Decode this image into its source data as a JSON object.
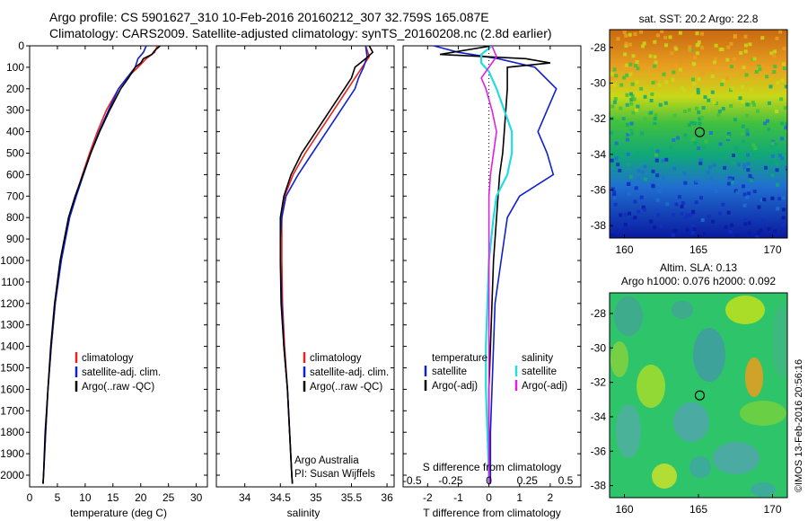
{
  "header": {
    "line1": "Argo profile: CS 5901627_310 10-Feb-2016 20160212_307 32.759S 165.087E",
    "line2": "Climatology: CARS2009. Satellite-adjusted climatology: synTS_20160208.nc (2.8d earlier)"
  },
  "colors": {
    "climatology": "#e8231e",
    "satellite": "#1020d0",
    "argo": "#000000",
    "sal_satellite": "#22dde0",
    "sal_argo": "#e020e0"
  },
  "chart_data": [
    {
      "type": "line",
      "xlabel": "temperature (deg C)",
      "ylabel": "",
      "xlim": [
        0,
        32
      ],
      "ylim": [
        2050,
        0
      ],
      "xticks": [
        "0",
        "5",
        "10",
        "15",
        "20",
        "25",
        "30"
      ],
      "yticks": [
        "0",
        "100",
        "200",
        "300",
        "400",
        "500",
        "600",
        "700",
        "800",
        "900",
        "1000",
        "1100",
        "1200",
        "1300",
        "1400",
        "1500",
        "1600",
        "1700",
        "1800",
        "1900",
        "2000"
      ],
      "legend": [
        "climatology",
        "satellite-adj. clim.",
        "Argo(..raw -QC)"
      ],
      "series": [
        {
          "name": "climatology",
          "y": [
            0,
            30,
            60,
            100,
            150,
            200,
            300,
            400,
            500,
            600,
            700,
            800,
            1000,
            1200,
            1400,
            1600,
            1800,
            2000,
            2040
          ],
          "x": [
            23,
            22.5,
            21,
            19.5,
            17.5,
            16,
            13.8,
            12.2,
            10.8,
            9.5,
            8.3,
            7.1,
            5.6,
            4.6,
            3.9,
            3.3,
            2.9,
            2.5,
            2.4
          ]
        },
        {
          "name": "satellite-adj. clim.",
          "y": [
            0,
            30,
            60,
            100,
            150,
            200,
            300,
            400,
            500,
            600,
            700,
            800,
            1000,
            1200,
            1400,
            1600,
            1800,
            2000,
            2040
          ],
          "x": [
            21,
            20.5,
            19.5,
            19,
            17.5,
            16,
            14.2,
            12.5,
            11,
            9.7,
            8.4,
            7.2,
            5.7,
            4.6,
            3.9,
            3.3,
            2.9,
            2.5,
            2.4
          ]
        },
        {
          "name": "Argo(..raw -QC)",
          "y": [
            0,
            20,
            40,
            60,
            80,
            100,
            150,
            200,
            300,
            400,
            500,
            600,
            700,
            800,
            1000,
            1200,
            1400,
            1600,
            1800,
            2000,
            2040
          ],
          "x": [
            23.5,
            22.6,
            22,
            20.5,
            20,
            19,
            17.8,
            16.4,
            14.4,
            12.6,
            11,
            9.6,
            8.2,
            7,
            5.5,
            4.5,
            3.8,
            3.3,
            2.8,
            2.5,
            2.4
          ]
        }
      ]
    },
    {
      "type": "line",
      "xlabel": "salinity",
      "xlim": [
        33.6,
        36.1
      ],
      "ylim": [
        2050,
        0
      ],
      "xticks": [
        "34",
        "34.5",
        "35",
        "35.5",
        "36"
      ],
      "legend": [
        "climatology",
        "satellite-adj. clim.",
        "Argo(..raw -QC)"
      ],
      "annotation": [
        "Argo Australia",
        "PI: Susan Wijffels"
      ],
      "series": [
        {
          "name": "climatology",
          "y": [
            0,
            50,
            100,
            150,
            200,
            300,
            400,
            500,
            600,
            700,
            800,
            900,
            1000,
            1200,
            1400,
            1600,
            1800,
            2000,
            2040
          ],
          "x": [
            35.7,
            35.75,
            35.65,
            35.55,
            35.45,
            35.25,
            35.05,
            34.85,
            34.68,
            34.56,
            34.52,
            34.52,
            34.52,
            34.53,
            34.56,
            34.6,
            34.63,
            34.66,
            34.67
          ]
        },
        {
          "name": "satellite-adj. clim.",
          "y": [
            0,
            50,
            100,
            150,
            200,
            300,
            400,
            500,
            600,
            700,
            800,
            900,
            1000,
            1200,
            1400,
            1600,
            1800,
            2000,
            2040
          ],
          "x": [
            35.7,
            35.72,
            35.67,
            35.6,
            35.55,
            35.35,
            35.15,
            34.95,
            34.75,
            34.58,
            34.52,
            34.5,
            34.5,
            34.52,
            34.55,
            34.6,
            34.63,
            34.66,
            34.67
          ]
        },
        {
          "name": "Argo(..raw -QC)",
          "y": [
            0,
            30,
            60,
            100,
            150,
            200,
            300,
            400,
            500,
            600,
            700,
            800,
            900,
            1000,
            1200,
            1400,
            1600,
            1800,
            2000,
            2040
          ],
          "x": [
            35.75,
            35.8,
            35.7,
            35.55,
            35.5,
            35.4,
            35.2,
            35.0,
            34.8,
            34.65,
            34.55,
            34.5,
            34.5,
            34.5,
            34.51,
            34.55,
            34.6,
            34.63,
            34.66,
            34.67
          ]
        }
      ]
    },
    {
      "type": "line",
      "xlabel": "T difference from climatology",
      "xlabel_top": "S difference from climatology",
      "xlim": [
        -2.8,
        3.0
      ],
      "ylim": [
        2050,
        0
      ],
      "xticks": [
        "-2",
        "-1",
        "0",
        "1",
        "2"
      ],
      "xticks_top": [
        "-0.5",
        "-0.25",
        "0",
        "0.25",
        "0.5"
      ],
      "legend_temperature": {
        "title": "temperature",
        "items": [
          "satellite",
          "Argo(-adj)"
        ]
      },
      "legend_salinity": {
        "title": "salinity",
        "items": [
          "satellite",
          "Argo(-adj)"
        ]
      },
      "series": [
        {
          "name": "temperature satellite",
          "y": [
            0,
            30,
            60,
            100,
            200,
            300,
            400,
            500,
            600,
            700,
            800,
            1000,
            1200,
            1400,
            1600,
            1800,
            2000,
            2040
          ],
          "x": [
            -1.8,
            -1,
            0.3,
            1.5,
            2.2,
            1.9,
            1.6,
            1.9,
            2.1,
            1.0,
            0.6,
            0.4,
            0.2,
            0.15,
            0.1,
            0.05,
            0.05,
            0.05
          ]
        },
        {
          "name": "temperature Argo(-adj)",
          "y": [
            0,
            40,
            60,
            80,
            100,
            200,
            300,
            400,
            500,
            600,
            700,
            800,
            1000,
            1200,
            1400,
            1600,
            1800,
            2000,
            2040
          ],
          "x": [
            0.1,
            -1.6,
            1.2,
            2.0,
            0.6,
            0.6,
            0.55,
            0.5,
            0.45,
            0.35,
            0.3,
            0.25,
            0.15,
            0.1,
            0.05,
            0.0,
            0.0,
            0.0,
            0.0
          ]
        },
        {
          "name": "salinity satellite",
          "y": [
            0,
            40,
            80,
            120,
            200,
            300,
            400,
            500,
            600,
            700,
            800,
            1000,
            1200,
            1400,
            1600,
            1800,
            2000,
            2040
          ],
          "x": [
            0.02,
            -0.05,
            -0.05,
            0.0,
            0.05,
            0.1,
            0.15,
            0.15,
            0.12,
            0.05,
            0.03,
            0.0,
            -0.01,
            -0.02,
            -0.02,
            -0.01,
            0.0,
            0.0
          ]
        },
        {
          "name": "salinity Argo(-adj)",
          "y": [
            0,
            50,
            100,
            150,
            200,
            300,
            400,
            500,
            600,
            700,
            800,
            1000,
            1200,
            1400,
            1600,
            1800,
            2000,
            2040
          ],
          "x": [
            0.02,
            0.05,
            0.0,
            -0.05,
            -0.02,
            0.02,
            0.05,
            0.03,
            0.01,
            0.0,
            0.0,
            0.0,
            0.0,
            0.0,
            0.0,
            0.0,
            0.0,
            0.0
          ]
        }
      ]
    },
    {
      "type": "heatmap",
      "title": "sat. SST: 20.2  Argo: 22.8",
      "xlim": [
        159,
        171
      ],
      "ylim": [
        -38.7,
        -27
      ],
      "xticks": [
        "160",
        "165",
        "170"
      ],
      "yticks": [
        "-28",
        "-30",
        "-32",
        "-34",
        "-36",
        "-38"
      ],
      "marker": {
        "x": 165.087,
        "y": -32.759
      }
    },
    {
      "type": "heatmap",
      "title_line1": "Altim. SLA: 0.13",
      "title_line2": "Argo h1000: 0.076  h2000: 0.092",
      "xlim": [
        159,
        171
      ],
      "ylim": [
        -38.7,
        -26.8
      ],
      "xticks": [
        "160",
        "165",
        "170"
      ],
      "yticks": [
        "-28",
        "-30",
        "-32",
        "-34",
        "-36",
        "-38"
      ],
      "marker": {
        "x": 165.087,
        "y": -32.759
      }
    }
  ],
  "credit": "©IMOS 13-Feb-2016 20:56:16"
}
